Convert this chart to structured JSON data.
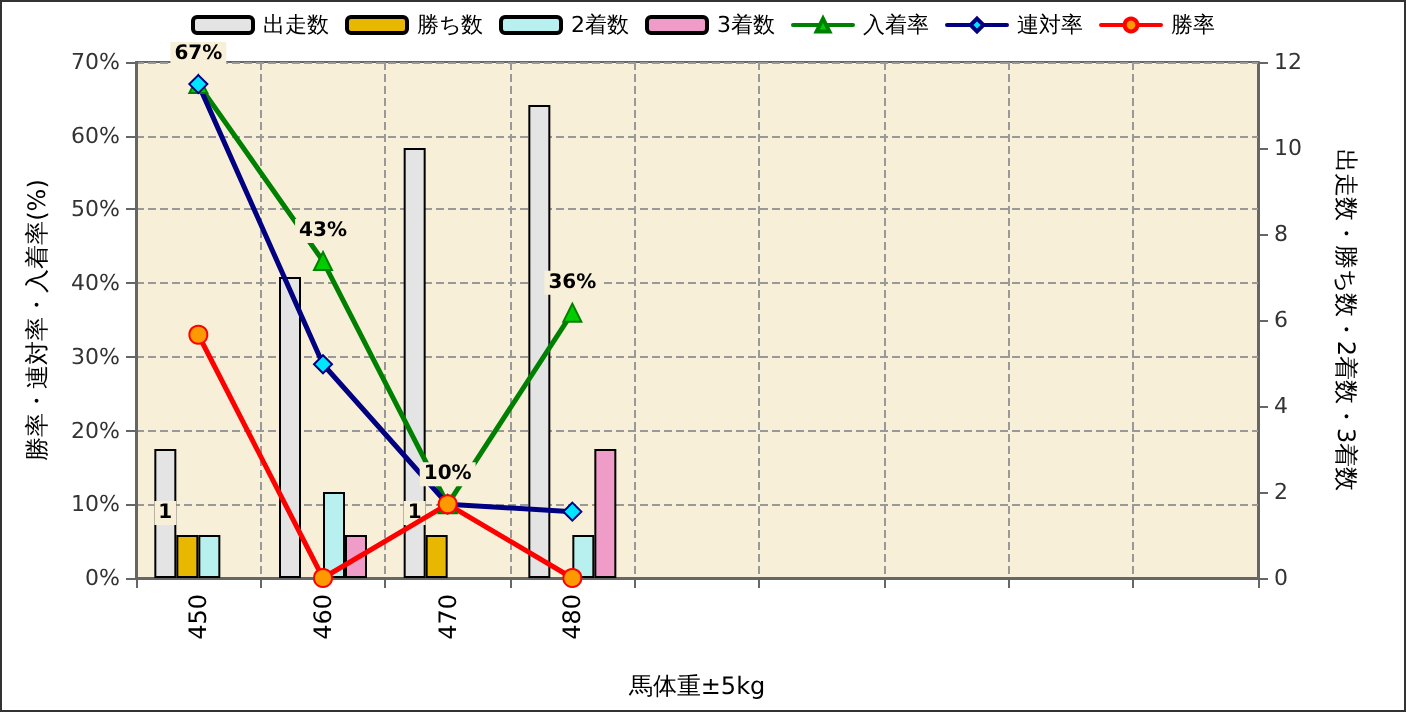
{
  "chart_data": {
    "type": "bar",
    "xlabel": "馬体重±5kg",
    "ylabel": "勝率・連対率・入着率(%)",
    "y2label": "出走数・勝ち数・2着数・3着数",
    "categories": [
      "450",
      "460",
      "470",
      "480",
      null,
      null,
      null,
      null,
      null
    ],
    "ylim": [
      0,
      70
    ],
    "yticks": [
      {
        "value": 0,
        "label": "0%"
      },
      {
        "value": 10,
        "label": "10%"
      },
      {
        "value": 20,
        "label": "20%"
      },
      {
        "value": 30,
        "label": "30%"
      },
      {
        "value": 40,
        "label": "40%"
      },
      {
        "value": 50,
        "label": "50%"
      },
      {
        "value": 60,
        "label": "60%"
      },
      {
        "value": 70,
        "label": "70%"
      }
    ],
    "y2lim": [
      0,
      12
    ],
    "y2ticks": [
      0,
      2,
      4,
      6,
      8,
      10,
      12
    ],
    "grid": true,
    "legend": "top",
    "series": [
      {
        "name": "出走数",
        "axis": "y2",
        "color": "#e4e4e4",
        "values": [
          3,
          7,
          10,
          11,
          null,
          null,
          null,
          null,
          null
        ]
      },
      {
        "name": "勝ち数",
        "axis": "y2",
        "color": "#e8b800",
        "values": [
          1,
          0,
          1,
          0,
          null,
          null,
          null,
          null,
          null
        ],
        "value_labels": [
          "1",
          null,
          "1",
          null,
          null,
          null,
          null,
          null,
          null
        ]
      },
      {
        "name": "2着数",
        "axis": "y2",
        "color": "#b8f0f0",
        "values": [
          1,
          2,
          0,
          1,
          null,
          null,
          null,
          null,
          null
        ]
      },
      {
        "name": "3着数",
        "axis": "y2",
        "color": "#f09cc8",
        "values": [
          0,
          1,
          0,
          3,
          null,
          null,
          null,
          null,
          null
        ]
      },
      {
        "name": "入着率",
        "type": "line",
        "axis": "y",
        "color": "#008000",
        "marker": "triangle",
        "values": [
          67,
          43,
          10,
          36,
          null,
          null,
          null,
          null,
          null
        ],
        "value_labels": [
          "67%",
          "43%",
          "10%",
          "36%",
          null,
          null,
          null,
          null,
          null
        ]
      },
      {
        "name": "連対率",
        "type": "line",
        "axis": "y",
        "color": "#000080",
        "marker": "diamond",
        "values": [
          67,
          29,
          10,
          9,
          null,
          null,
          null,
          null,
          null
        ]
      },
      {
        "name": "勝率",
        "type": "line",
        "axis": "y",
        "color": "#ff0000",
        "marker": "circle",
        "values": [
          33,
          0,
          10,
          0,
          null,
          null,
          null,
          null,
          null
        ]
      }
    ]
  }
}
